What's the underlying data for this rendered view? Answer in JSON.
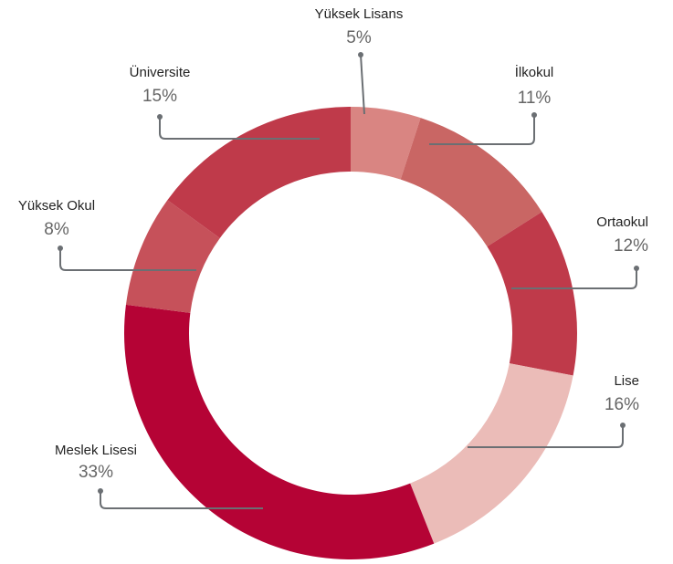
{
  "chart_data": {
    "type": "donut",
    "categories": [
      "Yüksek Lisans",
      "İlkokul",
      "Ortaokul",
      "Lise",
      "Meslek Lisesi",
      "Yüksek Okul",
      "Üniversite"
    ],
    "values": [
      5,
      11,
      12,
      16,
      33,
      8,
      15
    ],
    "value_labels": [
      "5%",
      "11%",
      "12%",
      "16%",
      "33%",
      "8%",
      "15%"
    ],
    "colors": [
      "#d98582",
      "#c96664",
      "#bf3a4a",
      "#ebbcb8",
      "#b50335",
      "#c6515a",
      "#bf3a4a"
    ]
  }
}
